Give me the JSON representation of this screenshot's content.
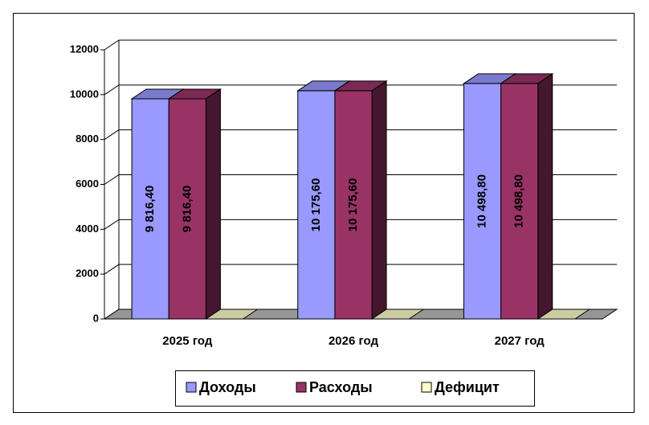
{
  "chart_data": {
    "type": "bar3d",
    "categories": [
      "2025 год",
      "2026 год",
      "2027 год"
    ],
    "series": [
      {
        "name": "Доходы",
        "color": "#9999ff",
        "values": [
          9816.4,
          10175.6,
          10498.8
        ],
        "value_labels": [
          "9 816,40",
          "10 175,60",
          "10 498,80"
        ]
      },
      {
        "name": "Расходы",
        "color": "#993366",
        "values": [
          9816.4,
          10175.6,
          10498.8
        ],
        "value_labels": [
          "9 816,40",
          "10 175,60",
          "10 498,80"
        ]
      },
      {
        "name": "Дефицит",
        "color": "#ffffcc",
        "values": [
          0,
          0,
          0
        ]
      }
    ],
    "ylim": [
      0,
      12000
    ],
    "yticks": [
      0,
      2000,
      4000,
      6000,
      8000,
      10000,
      12000
    ],
    "grid": true,
    "legend": "bottom"
  }
}
